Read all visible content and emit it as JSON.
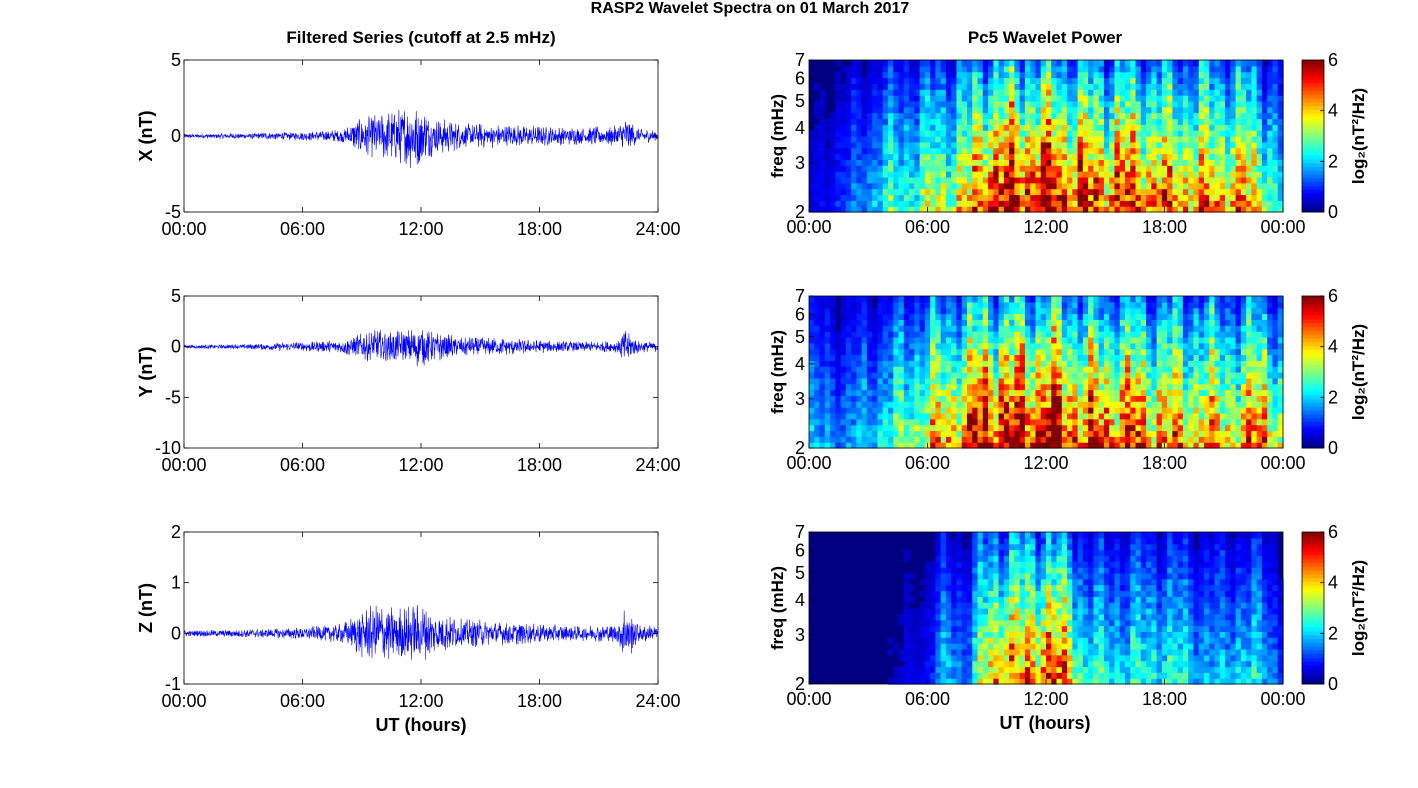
{
  "figure": {
    "title": "RASP2 Wavelet Spectra on 01 March 2017",
    "left_title": "Filtered Series (cutoff at 2.5 mHz)",
    "right_title": "Pc5 Wavelet Power",
    "x_axis_label": "UT (hours)",
    "colorbar_label": "log₂(nT²/Hz)",
    "colors": {
      "trace": "#0000ff",
      "axes": "#000000"
    }
  },
  "chart_data": [
    {
      "type": "line",
      "component": "X",
      "ylabel": "X (nT)",
      "xlim": [
        0,
        24
      ],
      "ylim": [
        -5,
        5
      ],
      "xticks": [
        0,
        6,
        12,
        18,
        24
      ],
      "xticklabels": [
        "00:00",
        "06:00",
        "12:00",
        "18:00",
        "24:00"
      ],
      "yticks": [
        -5,
        0,
        5
      ],
      "yticklabels": [
        "-5",
        "0",
        "5"
      ],
      "envelope_x": [
        0,
        3,
        6,
        8,
        9,
        10,
        11,
        11.8,
        12.5,
        14,
        16,
        18,
        20,
        22,
        22.3,
        23,
        24
      ],
      "envelope_amp": [
        0.15,
        0.2,
        0.3,
        0.45,
        1.3,
        1.6,
        2.0,
        2.4,
        1.4,
        0.9,
        0.8,
        0.7,
        0.6,
        0.7,
        1.4,
        0.5,
        0.4
      ]
    },
    {
      "type": "line",
      "component": "Y",
      "ylabel": "Y (nT)",
      "xlim": [
        0,
        24
      ],
      "ylim": [
        -10,
        5
      ],
      "xticks": [
        0,
        6,
        12,
        18,
        24
      ],
      "xticklabels": [
        "00:00",
        "06:00",
        "12:00",
        "18:00",
        "24:00"
      ],
      "yticks": [
        -10,
        -5,
        0,
        5
      ],
      "yticklabels": [
        "-10",
        "-5",
        "0",
        "5"
      ],
      "envelope_x": [
        0,
        3,
        6,
        8,
        9,
        10,
        11,
        12,
        12.5,
        14,
        16,
        18,
        20,
        22,
        22.3,
        23,
        24
      ],
      "envelope_amp": [
        0.2,
        0.25,
        0.5,
        0.7,
        1.5,
        1.8,
        1.6,
        2.2,
        1.7,
        1.0,
        0.9,
        0.7,
        0.5,
        0.6,
        2.0,
        0.6,
        0.5
      ]
    },
    {
      "type": "line",
      "component": "Z",
      "ylabel": "Z (nT)",
      "xlim": [
        0,
        24
      ],
      "ylim": [
        -1,
        2
      ],
      "xticks": [
        0,
        6,
        12,
        18,
        24
      ],
      "xticklabels": [
        "00:00",
        "06:00",
        "12:00",
        "18:00",
        "24:00"
      ],
      "yticks": [
        -1,
        0,
        1,
        2
      ],
      "yticklabels": [
        "-1",
        "0",
        "1",
        "2"
      ],
      "envelope_x": [
        0,
        3,
        6,
        8,
        9,
        10,
        11,
        12,
        12.5,
        14,
        16,
        18,
        20,
        22,
        22.3,
        23,
        24
      ],
      "envelope_amp": [
        0.06,
        0.08,
        0.12,
        0.2,
        0.5,
        0.6,
        0.55,
        0.6,
        0.45,
        0.3,
        0.25,
        0.2,
        0.15,
        0.2,
        0.65,
        0.2,
        0.15
      ]
    },
    {
      "type": "heatmap",
      "component": "X",
      "ylabel": "freq (mHz)",
      "xlim": [
        0,
        24
      ],
      "ylim": [
        2,
        7
      ],
      "yscale": "log",
      "xticks": [
        0,
        6,
        12,
        18,
        24
      ],
      "xticklabels": [
        "00:00",
        "06:00",
        "12:00",
        "18:00",
        "00:00"
      ],
      "yticks": [
        2,
        3,
        4,
        5,
        6,
        7
      ],
      "yticklabels": [
        "2",
        "3",
        "4",
        "5",
        "6",
        "7"
      ],
      "clim": [
        0,
        6
      ],
      "colorbar_ticks": [
        0,
        2,
        4,
        6
      ],
      "colormap": "jet",
      "activity_hours": [
        0,
        2,
        4,
        6,
        8,
        9,
        10,
        11,
        12,
        13,
        14,
        16,
        18,
        20,
        21,
        22,
        23,
        24
      ],
      "activity_power": [
        0.5,
        1.2,
        2.5,
        3.2,
        4.0,
        5.8,
        6.0,
        6.0,
        6.0,
        5.5,
        5.2,
        5.4,
        4.8,
        4.5,
        5.0,
        4.6,
        3.8,
        2.0
      ]
    },
    {
      "type": "heatmap",
      "component": "Y",
      "ylabel": "freq (mHz)",
      "xlim": [
        0,
        24
      ],
      "ylim": [
        2,
        7
      ],
      "yscale": "log",
      "xticks": [
        0,
        6,
        12,
        18,
        24
      ],
      "xticklabels": [
        "00:00",
        "06:00",
        "12:00",
        "18:00",
        "00:00"
      ],
      "yticks": [
        2,
        3,
        4,
        5,
        6,
        7
      ],
      "yticklabels": [
        "2",
        "3",
        "4",
        "5",
        "6",
        "7"
      ],
      "clim": [
        0,
        6
      ],
      "colorbar_ticks": [
        0,
        2,
        4,
        6
      ],
      "colormap": "jet",
      "activity_hours": [
        0,
        2,
        4,
        6,
        8,
        9,
        10,
        11,
        12,
        13,
        14,
        16,
        18,
        20,
        21,
        22,
        23,
        24
      ],
      "activity_power": [
        1.8,
        1.6,
        2.5,
        3.8,
        5.0,
        6.0,
        6.0,
        6.0,
        6.0,
        5.8,
        5.0,
        5.4,
        4.6,
        4.4,
        4.2,
        4.2,
        5.2,
        3.0
      ]
    },
    {
      "type": "heatmap",
      "component": "Z",
      "ylabel": "freq (mHz)",
      "xlim": [
        0,
        24
      ],
      "ylim": [
        2,
        7
      ],
      "yscale": "log",
      "xticks": [
        0,
        6,
        12,
        18,
        24
      ],
      "xticklabels": [
        "00:00",
        "06:00",
        "12:00",
        "18:00",
        "00:00"
      ],
      "yticks": [
        2,
        3,
        4,
        5,
        6,
        7
      ],
      "yticklabels": [
        "2",
        "3",
        "4",
        "5",
        "6",
        "7"
      ],
      "clim": [
        0,
        6
      ],
      "colorbar_ticks": [
        0,
        2,
        4,
        6
      ],
      "colormap": "jet",
      "activity_hours": [
        0,
        2,
        4,
        6,
        7,
        8,
        9,
        10,
        11,
        12,
        13,
        14,
        16,
        18,
        20,
        21,
        22,
        23,
        24
      ],
      "activity_power": [
        0.2,
        0.2,
        0.3,
        0.8,
        2.0,
        1.5,
        4.0,
        5.0,
        4.4,
        5.5,
        4.5,
        2.5,
        2.4,
        2.6,
        2.0,
        1.8,
        2.4,
        2.0,
        1.2
      ]
    }
  ]
}
